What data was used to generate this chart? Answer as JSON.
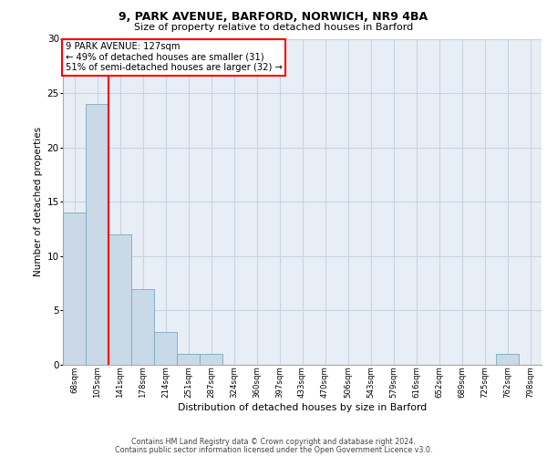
{
  "title_line1": "9, PARK AVENUE, BARFORD, NORWICH, NR9 4BA",
  "title_line2": "Size of property relative to detached houses in Barford",
  "xlabel": "Distribution of detached houses by size in Barford",
  "ylabel": "Number of detached properties",
  "categories": [
    "68sqm",
    "105sqm",
    "141sqm",
    "178sqm",
    "214sqm",
    "251sqm",
    "287sqm",
    "324sqm",
    "360sqm",
    "397sqm",
    "433sqm",
    "470sqm",
    "506sqm",
    "543sqm",
    "579sqm",
    "616sqm",
    "652sqm",
    "689sqm",
    "725sqm",
    "762sqm",
    "798sqm"
  ],
  "values": [
    14,
    24,
    12,
    7,
    3,
    1,
    1,
    0,
    0,
    0,
    0,
    0,
    0,
    0,
    0,
    0,
    0,
    0,
    0,
    1,
    0
  ],
  "bar_color": "#c9d9e8",
  "bar_edge_color": "#7aaabf",
  "redline_x": 1.5,
  "annotation_text": "9 PARK AVENUE: 127sqm\n← 49% of detached houses are smaller (31)\n51% of semi-detached houses are larger (32) →",
  "annotation_box_color": "white",
  "annotation_box_edge_color": "red",
  "redline_color": "red",
  "ylim": [
    0,
    30
  ],
  "yticks": [
    0,
    5,
    10,
    15,
    20,
    25,
    30
  ],
  "grid_color": "#c8d4e4",
  "background_color": "#e8eef6",
  "footer_line1": "Contains HM Land Registry data © Crown copyright and database right 2024.",
  "footer_line2": "Contains public sector information licensed under the Open Government Licence v3.0."
}
